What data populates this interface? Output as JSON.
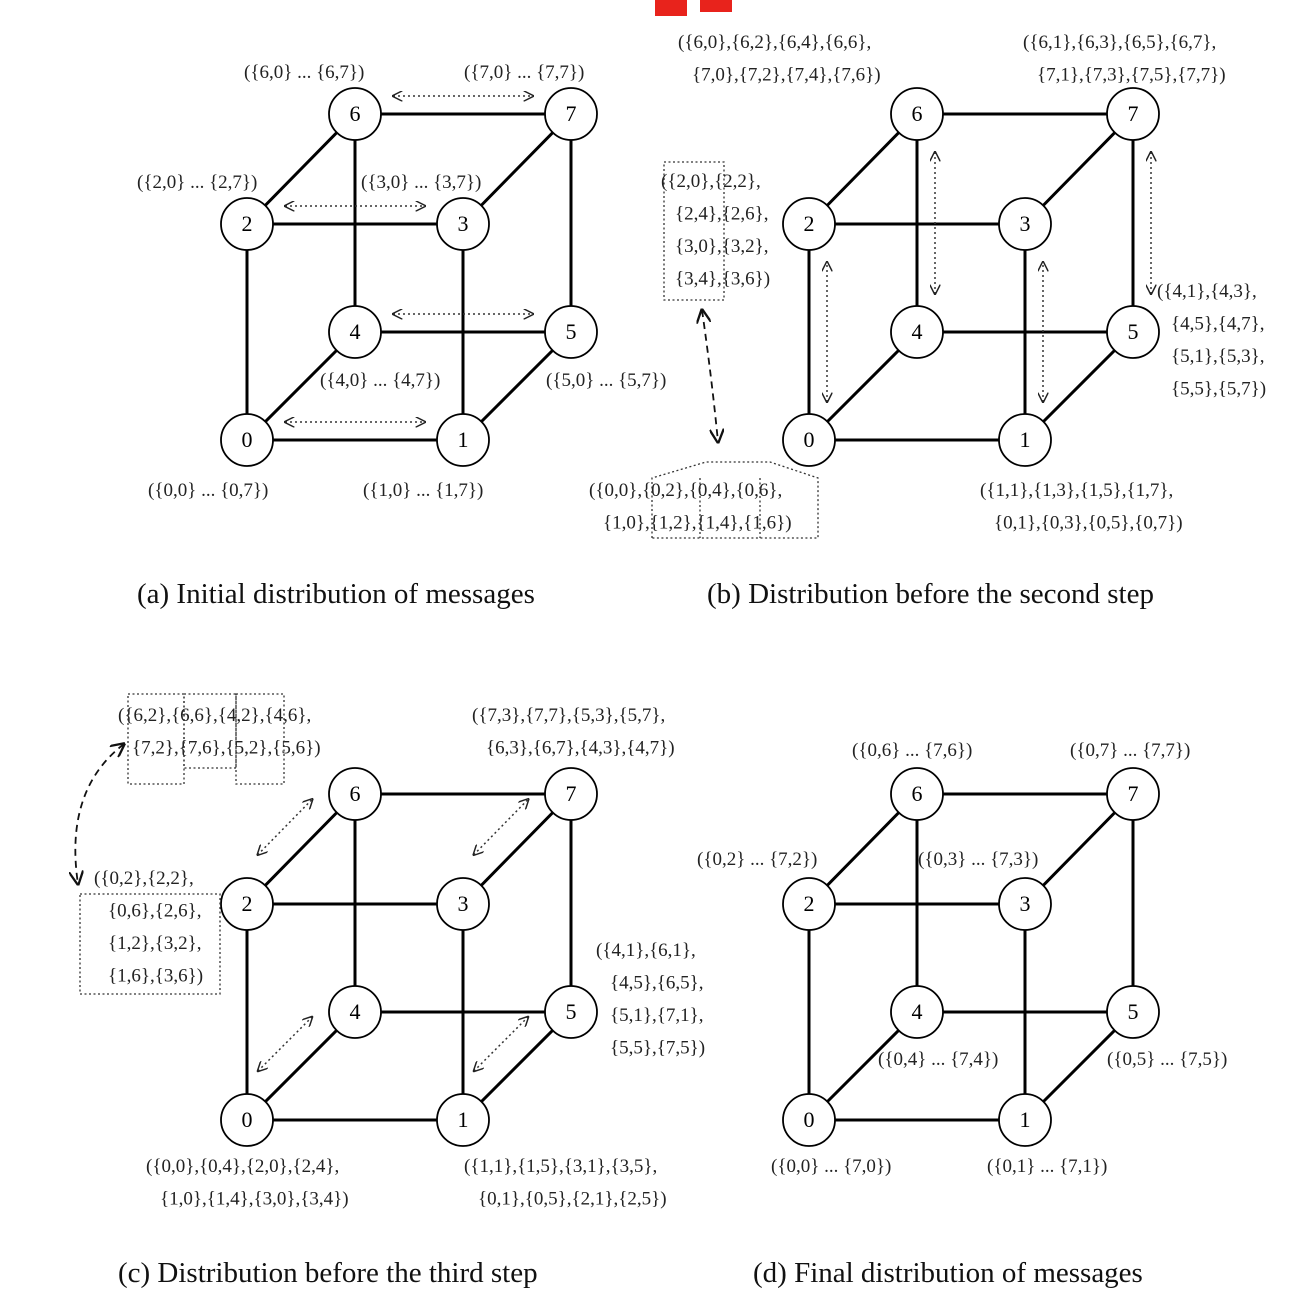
{
  "colors": {
    "line": "#000000",
    "text": "#222222",
    "accent_red": "#e8231c"
  },
  "panels": [
    {
      "id": "a",
      "caption": "(a)  Initial distribution of messages",
      "labels": {
        "n0": "({0,0} ... {0,7})",
        "n1": "({1,0} ... {1,7})",
        "n2": "({2,0} ... {2,7})",
        "n3": "({3,0} ... {3,7})",
        "n4": "({4,0} ... {4,7})",
        "n5": "({5,0} ... {5,7})",
        "n6": "({6,0} ... {6,7})",
        "n7": "({7,0} ... {7,7})"
      }
    },
    {
      "id": "b",
      "caption": "(b)  Distribution before the second step",
      "labels": {
        "n0": [
          "({0,0},{0,2},{0,4},{0,6},",
          "{1,0},{1,2},{1,4},{1,6})"
        ],
        "n1": [
          "({1,1},{1,3},{1,5},{1,7},",
          "{0,1},{0,3},{0,5},{0,7})"
        ],
        "n2": [
          "({2,0},{2,2},",
          "{2,4},{2,6},",
          "{3,0},{3,2},",
          "{3,4},{3,6})"
        ],
        "n5": [
          "({4,1},{4,3},",
          "{4,5},{4,7},",
          "{5,1},{5,3},",
          "{5,5},{5,7})"
        ],
        "n6": [
          "({6,0},{6,2},{6,4},{6,6},",
          "{7,0},{7,2},{7,4},{7,6})"
        ],
        "n7": [
          "({6,1},{6,3},{6,5},{6,7},",
          "{7,1},{7,3},{7,5},{7,7})"
        ]
      }
    },
    {
      "id": "c",
      "caption": "(c)  Distribution before the third step",
      "labels": {
        "n0": [
          "({0,0},{0,4},{2,0},{2,4},",
          "{1,0},{1,4},{3,0},{3,4})"
        ],
        "n1": [
          "({1,1},{1,5},{3,1},{3,5},",
          "{0,1},{0,5},{2,1},{2,5})"
        ],
        "n2": [
          "({0,2},{2,2},",
          "{0,6},{2,6},",
          "{1,2},{3,2},",
          "{1,6},{3,6})"
        ],
        "n5": [
          "({4,1},{6,1},",
          "{4,5},{6,5},",
          "{5,1},{7,1},",
          "{5,5},{7,5})"
        ],
        "n6": [
          "({6,2},{6,6},{4,2},{4,6},",
          "{7,2},{7,6},{5,2},{5,6})"
        ],
        "n7": [
          "({7,3},{7,7},{5,3},{5,7},",
          "{6,3},{6,7},{4,3},{4,7})"
        ]
      }
    },
    {
      "id": "d",
      "caption": "(d)  Final distribution of messages",
      "labels": {
        "n0": "({0,0} ... {7,0})",
        "n1": "({0,1} ... {7,1})",
        "n2": "({0,2} ... {7,2})",
        "n3": "({0,3} ... {7,3})",
        "n4": "({0,4} ... {7,4})",
        "n5": "({0,5} ... {7,5})",
        "n6": "({0,6} ... {7,6})",
        "n7": "({0,7} ... {7,7})"
      }
    }
  ],
  "node_ids": [
    "0",
    "1",
    "2",
    "3",
    "4",
    "5",
    "6",
    "7"
  ]
}
